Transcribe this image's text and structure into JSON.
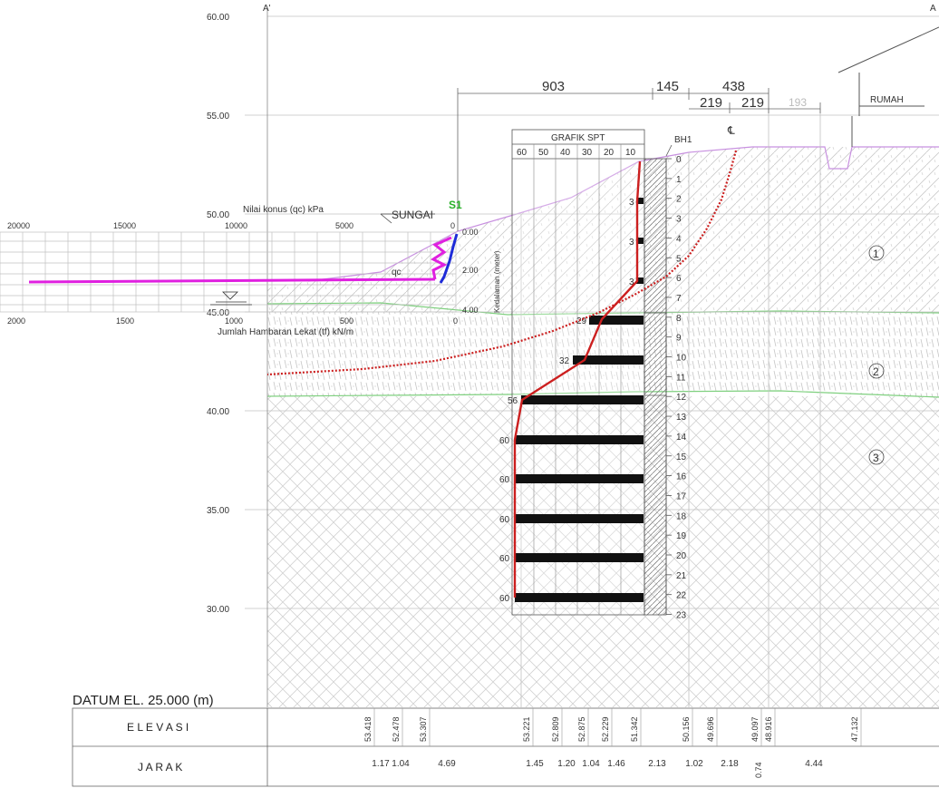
{
  "section_marks": {
    "left": "A'",
    "right": "A"
  },
  "elevation_axis": [
    "60.00",
    "55.00",
    "50.00",
    "45.00",
    "40.00",
    "35.00",
    "30.00"
  ],
  "dimensions": {
    "top": [
      "903",
      "145",
      "438"
    ],
    "sub": [
      "219",
      "219",
      "193"
    ]
  },
  "labels": {
    "house": "RUMAH",
    "river": "SUNGAI",
    "sounding": "S1",
    "borehole": "BH1",
    "centerline": "℄",
    "spt_title": "GRAFIK SPT",
    "cone_title": "Nilai konus (qc) kPa",
    "friction_title": "Jumlah Hambaran Lekat (tf) kN/m",
    "qc_tag": "qc",
    "depth_axis_title": "Kedalaman (meter)",
    "datum": "DATUM EL. 25.000  (m)",
    "row_elevation": "E L E V A S I",
    "row_distance": "J A R A K"
  },
  "spt_scale": [
    "60",
    "50",
    "40",
    "30",
    "20",
    "10"
  ],
  "cone_scale": [
    "20000",
    "15000",
    "10000",
    "5000",
    "0"
  ],
  "friction_scale": [
    "2000",
    "1500",
    "1000",
    "500",
    "0"
  ],
  "sondir_depths": [
    "0.00",
    "2.00",
    "4.00"
  ],
  "depth_ticks": [
    "0",
    "1",
    "2",
    "3",
    "4",
    "5",
    "6",
    "7",
    "8",
    "9",
    "10",
    "11",
    "12",
    "13",
    "14",
    "15",
    "16",
    "17",
    "18",
    "19",
    "20",
    "21",
    "22",
    "23"
  ],
  "layers": [
    "1",
    "2",
    "3"
  ],
  "n_values": [
    "3",
    "3",
    "3",
    "29",
    "32",
    "56",
    "60",
    "60",
    "60",
    "60",
    "60"
  ],
  "elevation_values": [
    "53.418",
    "52.478",
    "53.307",
    "53.221",
    "52.809",
    "52.875",
    "52.229",
    "51.342",
    "50.156",
    "49.696",
    "49.097",
    "48.916",
    "47.132"
  ],
  "distance_values": [
    "1.17",
    "1.04",
    "4.69",
    "1.45",
    "1.20",
    "1.04",
    "1.46",
    "2.13",
    "1.02",
    "2.18",
    "0.74",
    "4.44"
  ],
  "colors": {
    "spt_line": "#cc1f1f",
    "qc_line": "#e020e0",
    "friction_line": "#1e2bd8",
    "layer_boundary": "#7fd07f",
    "ground_line": "#c890e0",
    "grid": "#b8b8b8"
  }
}
